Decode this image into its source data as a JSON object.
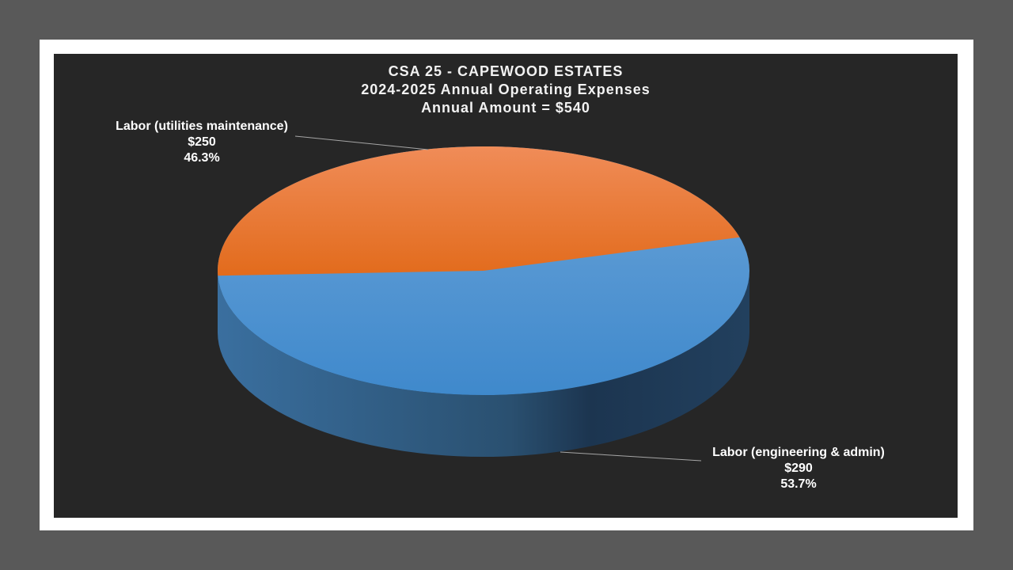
{
  "colors": {
    "page_background": "#595959",
    "frame": "#ffffff",
    "chart_background": "#262626",
    "series_blue": "#5b9bd5",
    "series_orange": "#ed7d31",
    "text": "#ffffff",
    "leader_line": "#a6a6a6"
  },
  "chart_data": {
    "type": "pie",
    "style": "3d",
    "title_lines": [
      "CSA 25 - CAPEWOOD ESTATES",
      "2024-2025 Annual Operating Expenses",
      "Annual Amount = $540"
    ],
    "slices": [
      {
        "label": "Labor (engineering & admin)",
        "value": 290,
        "value_text": "$290",
        "percent": 53.7,
        "percent_text": "53.7%",
        "color": "#5b9bd5"
      },
      {
        "label": "Labor (utilities maintenance)",
        "value": 250,
        "value_text": "$250",
        "percent": 46.3,
        "percent_text": "46.3%",
        "color": "#ed7d31"
      }
    ],
    "total": 540,
    "legend": "none"
  }
}
